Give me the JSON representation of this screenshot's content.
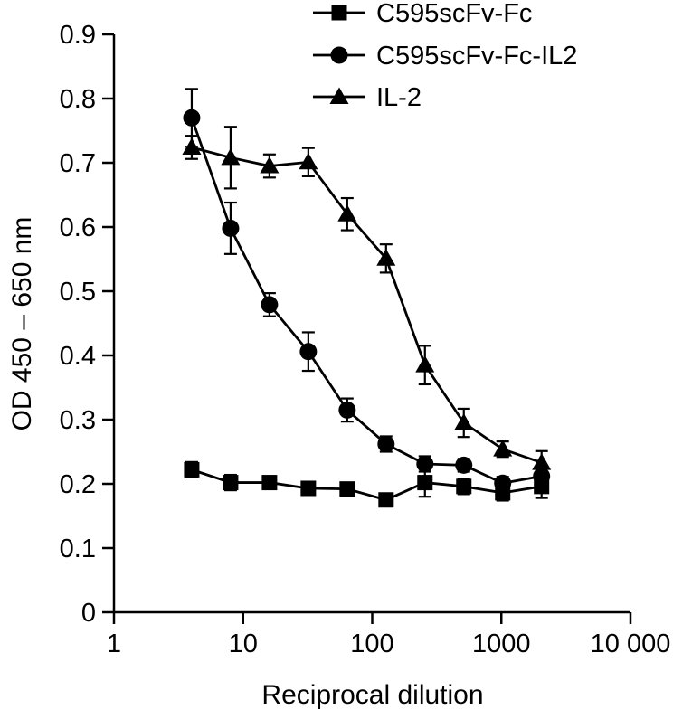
{
  "chart_data": {
    "type": "line",
    "title": "",
    "xlabel": "Reciprocal dilution",
    "ylabel": "OD 450 – 650 nm",
    "x_scale": "log",
    "xlim": [
      1,
      10000
    ],
    "ylim": [
      0,
      0.9
    ],
    "x_ticks": [
      1,
      10,
      100,
      1000,
      10000
    ],
    "x_tick_labels": [
      "1",
      "10",
      "100",
      "1000",
      "10 000"
    ],
    "y_ticks": [
      0,
      0.1,
      0.2,
      0.3,
      0.4,
      0.5,
      0.6,
      0.7,
      0.8,
      0.9
    ],
    "y_tick_labels": [
      "0",
      "0.1",
      "0.2",
      "0.3",
      "0.4",
      "0.5",
      "0.6",
      "0.7",
      "0.8",
      "0.9"
    ],
    "grid": false,
    "legend_position": "top",
    "x": [
      4,
      8,
      16,
      32,
      64,
      128,
      256,
      512,
      1024,
      2048
    ],
    "series": [
      {
        "name": "C595scFv-Fc",
        "marker": "square",
        "color": "#000000",
        "values": [
          0.222,
          0.202,
          0.202,
          0.193,
          0.192,
          0.175,
          0.202,
          0.196,
          0.186,
          0.196
        ],
        "errors": [
          0.012,
          0.012,
          0.01,
          0.01,
          0.01,
          0.01,
          0.022,
          0.012,
          0.012,
          0.018
        ]
      },
      {
        "name": "C595scFv-Fc-IL2",
        "marker": "circle",
        "color": "#000000",
        "values": [
          0.77,
          0.598,
          0.479,
          0.406,
          0.315,
          0.262,
          0.231,
          0.229,
          0.201,
          0.212
        ],
        "errors": [
          0.045,
          0.04,
          0.018,
          0.03,
          0.018,
          0.012,
          0.012,
          0.01,
          0.01,
          0.015
        ]
      },
      {
        "name": "IL-2",
        "marker": "triangle",
        "color": "#000000",
        "values": [
          0.724,
          0.708,
          0.695,
          0.701,
          0.62,
          0.551,
          0.385,
          0.295,
          0.254,
          0.233
        ],
        "errors": [
          0.018,
          0.048,
          0.018,
          0.022,
          0.025,
          0.022,
          0.03,
          0.022,
          0.012,
          0.018
        ]
      }
    ]
  }
}
